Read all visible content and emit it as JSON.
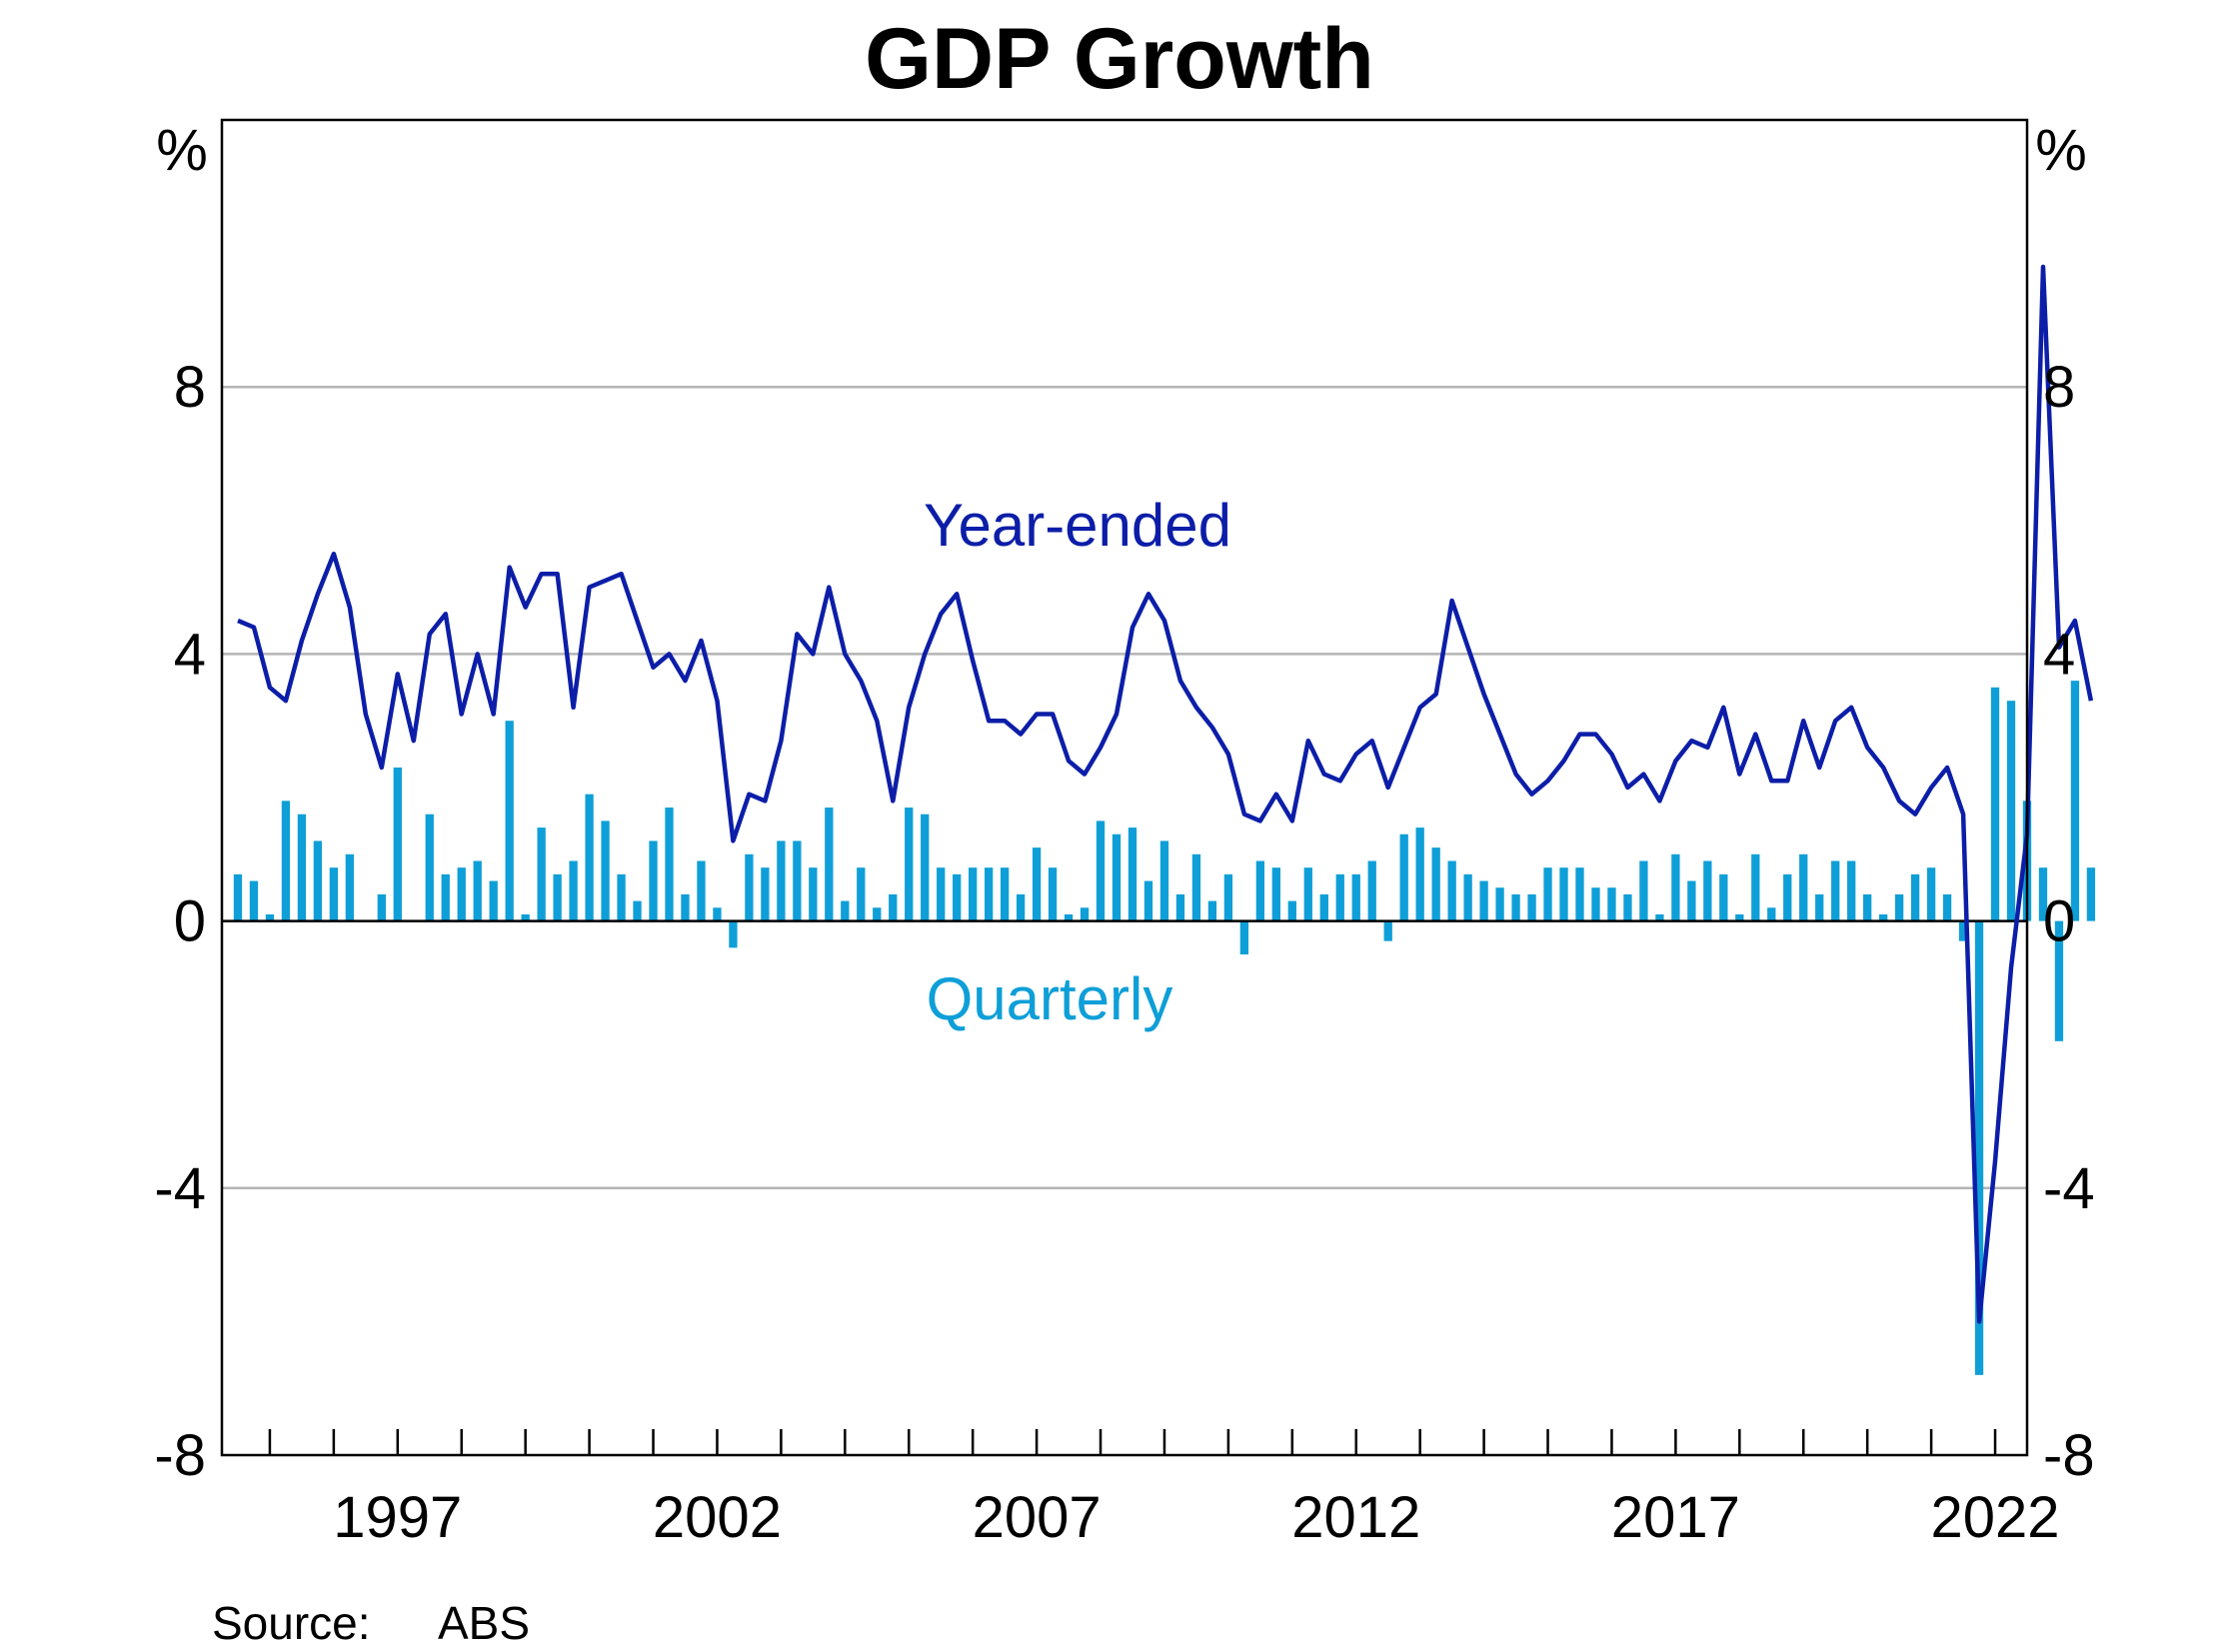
{
  "chart_data": {
    "type": "bar+line",
    "title": "GDP Growth",
    "y_unit_left": "%",
    "y_unit_right": "%",
    "ylim": [
      -8,
      12
    ],
    "y_ticks": [
      -8,
      -4,
      0,
      4,
      8
    ],
    "x_range": [
      1994.25,
      2022.5
    ],
    "x_tick_labels": [
      "1997",
      "2002",
      "2007",
      "2012",
      "2017",
      "2022"
    ],
    "source_label": "Source:",
    "source_value": "ABS",
    "grid": true,
    "colors": {
      "year_ended": "#0c1ea8",
      "quarterly": "#0f9fd8",
      "grid": "#b4b4b4",
      "axis": "#000000"
    },
    "start_quarter_x": 1994.5,
    "series": [
      {
        "name": "Year-ended",
        "type": "line",
        "values": [
          4.5,
          4.4,
          3.5,
          3.3,
          4.2,
          4.9,
          5.5,
          4.7,
          3.1,
          2.3,
          3.7,
          2.7,
          4.3,
          4.6,
          3.1,
          4.0,
          3.1,
          5.3,
          4.7,
          5.2,
          5.2,
          3.2,
          5.0,
          5.1,
          5.2,
          4.5,
          3.8,
          4.0,
          3.6,
          4.2,
          3.3,
          1.2,
          1.9,
          1.8,
          2.7,
          4.3,
          4.0,
          5.0,
          4.0,
          3.6,
          3.0,
          1.8,
          3.2,
          4.0,
          4.6,
          4.9,
          3.9,
          3.0,
          3.0,
          2.8,
          3.1,
          3.1,
          2.4,
          2.2,
          2.6,
          3.1,
          4.4,
          4.9,
          4.5,
          3.6,
          3.2,
          2.9,
          2.5,
          1.6,
          1.5,
          1.9,
          1.5,
          2.7,
          2.2,
          2.1,
          2.5,
          2.7,
          2.0,
          2.6,
          3.2,
          3.4,
          4.8,
          4.1,
          3.4,
          2.8,
          2.2,
          1.9,
          2.1,
          2.4,
          2.8,
          2.8,
          2.5,
          2.0,
          2.2,
          1.8,
          2.4,
          2.7,
          2.6,
          3.2,
          2.2,
          2.8,
          2.1,
          2.1,
          3.0,
          2.3,
          3.0,
          3.2,
          2.6,
          2.3,
          1.8,
          1.6,
          2.0,
          2.3,
          1.6,
          -6.0,
          -3.6,
          -0.7,
          1.3,
          9.8,
          4.1,
          4.5,
          3.3
        ]
      },
      {
        "name": "Quarterly",
        "type": "bar",
        "values": [
          0.7,
          0.6,
          0.1,
          1.8,
          1.6,
          1.2,
          0.8,
          1.0,
          0.0,
          0.4,
          2.3,
          0.0,
          1.6,
          0.7,
          0.8,
          0.9,
          0.6,
          3.0,
          0.1,
          1.4,
          0.7,
          0.9,
          1.9,
          1.5,
          0.7,
          0.3,
          1.2,
          1.7,
          0.4,
          0.9,
          0.2,
          -0.4,
          1.0,
          0.8,
          1.2,
          1.2,
          0.8,
          1.7,
          0.3,
          0.8,
          0.2,
          0.4,
          1.7,
          1.6,
          0.8,
          0.7,
          0.8,
          0.8,
          0.8,
          0.4,
          1.1,
          0.8,
          0.1,
          0.2,
          1.5,
          1.3,
          1.4,
          0.6,
          1.2,
          0.4,
          1.0,
          0.3,
          0.7,
          -0.5,
          0.9,
          0.8,
          0.3,
          0.8,
          0.4,
          0.7,
          0.7,
          0.9,
          -0.3,
          1.3,
          1.4,
          1.1,
          0.9,
          0.7,
          0.6,
          0.5,
          0.4,
          0.4,
          0.8,
          0.8,
          0.8,
          0.5,
          0.5,
          0.4,
          0.9,
          0.1,
          1.0,
          0.6,
          0.9,
          0.7,
          0.1,
          1.0,
          0.2,
          0.7,
          1.0,
          0.4,
          0.9,
          0.9,
          0.4,
          0.1,
          0.4,
          0.7,
          0.8,
          0.4,
          -0.3,
          -6.8,
          3.5,
          3.3,
          1.8,
          0.8,
          -1.8,
          3.6,
          0.8
        ]
      }
    ]
  }
}
